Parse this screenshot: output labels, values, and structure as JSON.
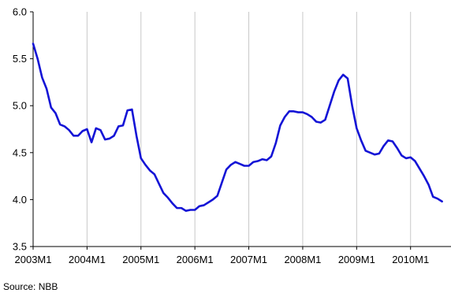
{
  "chart_data": {
    "type": "line",
    "title": "",
    "xlabel": "",
    "ylabel": "",
    "ylim": [
      3.5,
      6.0
    ],
    "yticks": [
      3.5,
      4.0,
      4.5,
      5.0,
      5.5,
      6.0
    ],
    "xlim": [
      0,
      93
    ],
    "x_tick_labels": [
      "2003M1",
      "2004M1",
      "2005M1",
      "2006M1",
      "2007M1",
      "2008M1",
      "2009M1",
      "2010M1"
    ],
    "x_tick_positions": [
      0,
      12,
      24,
      36,
      48,
      60,
      72,
      84
    ],
    "grid": "vertical",
    "legend": "none",
    "line_color": "#1414d6",
    "source_text": "Source: NBB",
    "series": [
      {
        "x": [
          0,
          1,
          2,
          3,
          4,
          5,
          6,
          7,
          8,
          9,
          10,
          11,
          12,
          13,
          14,
          15,
          16,
          17,
          18,
          19,
          20,
          21,
          22,
          23,
          24,
          25,
          26,
          27,
          28,
          29,
          30,
          31,
          32,
          33,
          34,
          35,
          36,
          37,
          38,
          39,
          40,
          41,
          42,
          43,
          44,
          45,
          46,
          47,
          48,
          49,
          50,
          51,
          52,
          53,
          54,
          55,
          56,
          57,
          58,
          59,
          60,
          61,
          62,
          63,
          64,
          65,
          66,
          67,
          68,
          69,
          70,
          71,
          72,
          73,
          74,
          75,
          76,
          77,
          78,
          79,
          80,
          81,
          82,
          83,
          84,
          85,
          86,
          87,
          88,
          89,
          90,
          91
        ],
        "values": [
          5.66,
          5.5,
          5.3,
          5.18,
          4.98,
          4.92,
          4.8,
          4.78,
          4.74,
          4.68,
          4.68,
          4.73,
          4.75,
          4.61,
          4.76,
          4.74,
          4.64,
          4.65,
          4.68,
          4.78,
          4.79,
          4.95,
          4.96,
          4.68,
          4.44,
          4.37,
          4.31,
          4.27,
          4.17,
          4.07,
          4.02,
          3.96,
          3.91,
          3.91,
          3.88,
          3.89,
          3.89,
          3.93,
          3.94,
          3.97,
          4.0,
          4.04,
          4.18,
          4.32,
          4.37,
          4.4,
          4.38,
          4.36,
          4.36,
          4.4,
          4.41,
          4.43,
          4.42,
          4.46,
          4.6,
          4.79,
          4.88,
          4.94,
          4.94,
          4.93,
          4.93,
          4.91,
          4.88,
          4.83,
          4.82,
          4.85,
          5.0,
          5.15,
          5.27,
          5.33,
          5.29,
          5.0,
          4.76,
          4.63,
          4.52,
          4.5,
          4.48,
          4.49,
          4.57,
          4.63,
          4.62,
          4.55,
          4.47,
          4.44,
          4.45,
          4.41,
          4.33,
          4.25,
          4.16,
          4.03,
          4.01,
          3.98
        ]
      }
    ]
  }
}
